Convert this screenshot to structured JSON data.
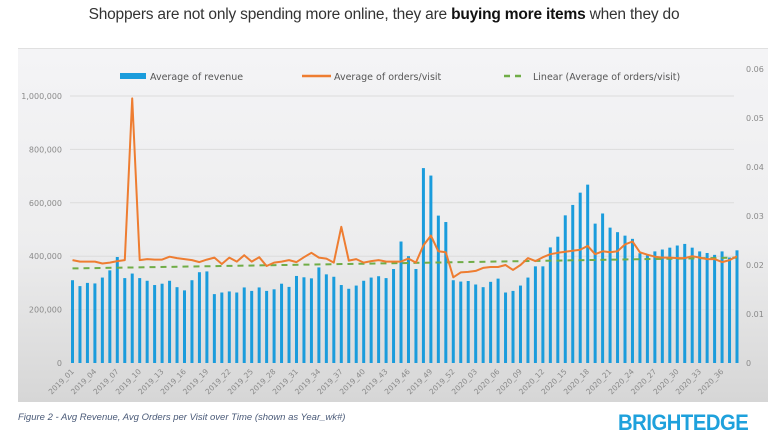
{
  "headline": {
    "prefix": "Shoppers are not only spending more online, they are ",
    "bold": "buying more items",
    "suffix": " when they do"
  },
  "caption": "Figure 2 - Avg Revenue, Avg Orders per Visit over Time (shown as Year_wk#)",
  "logo": "BRIGHTEDGE",
  "colors": {
    "bars": "#1a9cdc",
    "orders_line": "#ee7d31",
    "trend_line": "#70ad47",
    "logo": "#1ea1dc"
  },
  "chart_data": {
    "type": "bar",
    "title": "",
    "xlabel": "",
    "ylabel": "",
    "legend_position": "top",
    "grid": true,
    "legend": [
      "Average of revenue",
      "Average of orders/visit",
      "Linear (Average of orders/visit)"
    ],
    "y_left": {
      "min": 0,
      "max": 1000000,
      "ticks": [
        0,
        200000,
        400000,
        600000,
        800000,
        1000000
      ],
      "tick_labels": [
        "0",
        "200,000",
        "400,000",
        "600,000",
        "800,000",
        "1,000,000"
      ]
    },
    "y_right": {
      "min": 0,
      "max": 0.06,
      "ticks": [
        0,
        0.01,
        0.02,
        0.03,
        0.04,
        0.05,
        0.06
      ],
      "tick_labels": [
        "0",
        "0.01",
        "0.02",
        "0.03",
        "0.04",
        "0.05",
        "0.06"
      ]
    },
    "x_tick_labels": [
      "2019_01",
      "2019_04",
      "2019_07",
      "2019_10",
      "2019_13",
      "2019_16",
      "2019_19",
      "2019_22",
      "2019_25",
      "2019_28",
      "2019_31",
      "2019_34",
      "2019_37",
      "2019_40",
      "2019_43",
      "2019_46",
      "2019_49",
      "2019_52",
      "2020_03",
      "2020_06",
      "2020_09",
      "2020_12",
      "2020_15",
      "2020_18",
      "2020_21",
      "2020_24",
      "2020_27",
      "2020_30",
      "2020_33",
      "2020_36"
    ],
    "categories_count": 90,
    "categories_note": "weekly, 2019_01 through 2020_38",
    "series": [
      {
        "name": "Average of revenue",
        "type": "bar",
        "axis": "left",
        "values": [
          310000,
          288000,
          300000,
          298000,
          320000,
          347000,
          397000,
          318000,
          335000,
          318000,
          308000,
          292000,
          297000,
          308000,
          284000,
          272000,
          310000,
          340000,
          343000,
          258000,
          264000,
          268000,
          264000,
          283000,
          270000,
          283000,
          270000,
          276000,
          297000,
          285000,
          326000,
          321000,
          317000,
          358000,
          332000,
          323000,
          292000,
          278000,
          290000,
          308000,
          320000,
          325000,
          318000,
          352000,
          455000,
          400000,
          352000,
          730000,
          702000,
          552000,
          528000,
          310000,
          305000,
          307000,
          294000,
          284000,
          304000,
          316000,
          264000,
          270000,
          290000,
          320000,
          362000,
          362000,
          433000,
          473000,
          553000,
          592000,
          638000,
          668000,
          522000,
          560000,
          507000,
          490000,
          477000,
          465000,
          411000,
          403000,
          418000,
          425000,
          432000,
          440000,
          446000,
          432000,
          418000,
          412000,
          405000,
          418000,
          395000,
          422000
        ]
      },
      {
        "name": "Average of orders/visit",
        "type": "line",
        "axis": "right",
        "values": [
          0.021,
          0.0207,
          0.0207,
          0.0207,
          0.0203,
          0.0205,
          0.0208,
          0.021,
          0.054,
          0.021,
          0.0212,
          0.0211,
          0.0211,
          0.0217,
          0.0214,
          0.0212,
          0.021,
          0.0206,
          0.0211,
          0.0215,
          0.0202,
          0.0215,
          0.0207,
          0.022,
          0.0207,
          0.0216,
          0.0198,
          0.0205,
          0.0207,
          0.021,
          0.0206,
          0.0216,
          0.0225,
          0.0215,
          0.0213,
          0.0205,
          0.0278,
          0.0209,
          0.0212,
          0.0205,
          0.0208,
          0.021,
          0.0207,
          0.0207,
          0.0207,
          0.0213,
          0.0205,
          0.024,
          0.026,
          0.0228,
          0.0226,
          0.0175,
          0.0185,
          0.0186,
          0.0188,
          0.0194,
          0.0196,
          0.0196,
          0.02,
          0.019,
          0.02,
          0.0214,
          0.0208,
          0.0216,
          0.0222,
          0.0225,
          0.0227,
          0.0229,
          0.0231,
          0.0239,
          0.0222,
          0.0228,
          0.0226,
          0.0228,
          0.0242,
          0.0248,
          0.0226,
          0.0221,
          0.0217,
          0.0215,
          0.0215,
          0.0214,
          0.0214,
          0.0218,
          0.0215,
          0.0212,
          0.0212,
          0.0206,
          0.021,
          0.0218
        ]
      },
      {
        "name": "Linear (Average of orders/visit)",
        "type": "trendline",
        "axis": "right",
        "start": 0.0193,
        "end": 0.0215
      }
    ]
  }
}
